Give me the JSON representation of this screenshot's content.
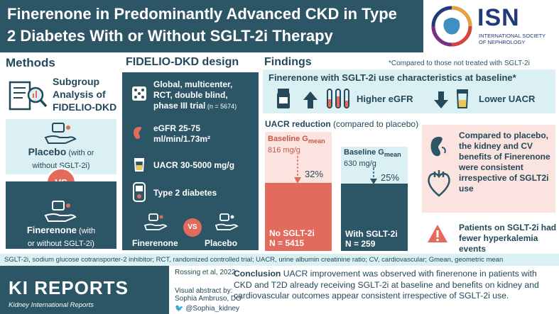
{
  "header": {
    "title": "Finerenone in Predominantly Advanced CKD in Type 2 Diabetes With or Without SGLT-2i Therapy",
    "logo_text": "ISN",
    "logo_subtitle_1": "INTERNATIONAL SOCIETY",
    "logo_subtitle_2": "OF NEPHROLOGY"
  },
  "methods": {
    "title": "Methods",
    "subtitle_1": "Subgroup",
    "subtitle_2": "Analysis of",
    "subtitle_3": "FIDELIO-DKD",
    "placebo_label": "Placebo",
    "placebo_sub_1": " (with or",
    "placebo_sub_2": "without SGLT-2i)",
    "vs": "VS",
    "finerenone_label": "Finerenone",
    "finerenone_sub_1": " (with",
    "finerenone_sub_2": "or without SGLT-2i)"
  },
  "design": {
    "title": "FIDELIO-DKD design",
    "item1_1": "Global, multicenter,",
    "item1_2": "RCT, double blind,",
    "item1_3": "phase III trial",
    "item1_n": " (n = 5674)",
    "item2_1": "eGFR 25-75",
    "item2_2": "ml/min/1.73m²",
    "item3": "UACR 30-5000 mg/g",
    "item4": "Type 2 diabetes",
    "arm1": "Finerenone",
    "arm2": "Placebo",
    "vs": "VS"
  },
  "findings": {
    "title": "Findings",
    "note": "*Compared to those not treated with SGLT-2i",
    "box_title": "Finerenone with SGLT-2i use characteristics at baseline*",
    "higher_egfr": "Higher eGFR",
    "lower_uacr": "Lower UACR",
    "uacr_title": "UACR reduction",
    "uacr_title_sub": " (compared to placebo)",
    "bar1_baseline": "Baseline G",
    "bar1_baseline_sub": "mean",
    "bar1_value": "816 mg/g",
    "bar1_pct": "32%",
    "bar1_group": "No SGLT-2i",
    "bar1_n": "N = 5415",
    "bar2_baseline": "Baseline G",
    "bar2_baseline_sub": "mean",
    "bar2_value": "630 mg/g",
    "bar2_pct": "25%",
    "bar2_group": "With SGLT-2i",
    "bar2_n": "N = 259",
    "cv_text": "Compared to placebo, the kidney and CV benefits of Finerenone were consistent irrespective of SGLT2i use",
    "hk_text": "Patients on SGLT-2i had fewer hyperkalemia events"
  },
  "abbreviations": "SGLT-2i, sodium glucose cotransporter-2 inhibitor; RCT, randomized controlled trial; UACR, urine albumin creatinine ratio; CV, cardiovascular; Gmean, geometric mean",
  "footer": {
    "journal": "KI REPORTS",
    "journal_sub": "Kidney International Reports",
    "citation": "Rossing et al, 2022",
    "va_1": "Visual abstract by:",
    "va_2": "Sophia Ambruso, DO",
    "twitter": "@Sophia_kidney",
    "conclusion_label": "Conclusion",
    "conclusion_text": " UACR improvement was observed with finerenone in patients with CKD and T2D already receiving SGLT-2i at baseline and benefits on kidney and cardiovascular outcomes appear consistent irrespective of SGLT-2i use."
  },
  "colors": {
    "navy": "#2c5566",
    "light_blue": "#dbf0f3",
    "coral": "#e36b5e",
    "pink": "#fbe3df"
  }
}
